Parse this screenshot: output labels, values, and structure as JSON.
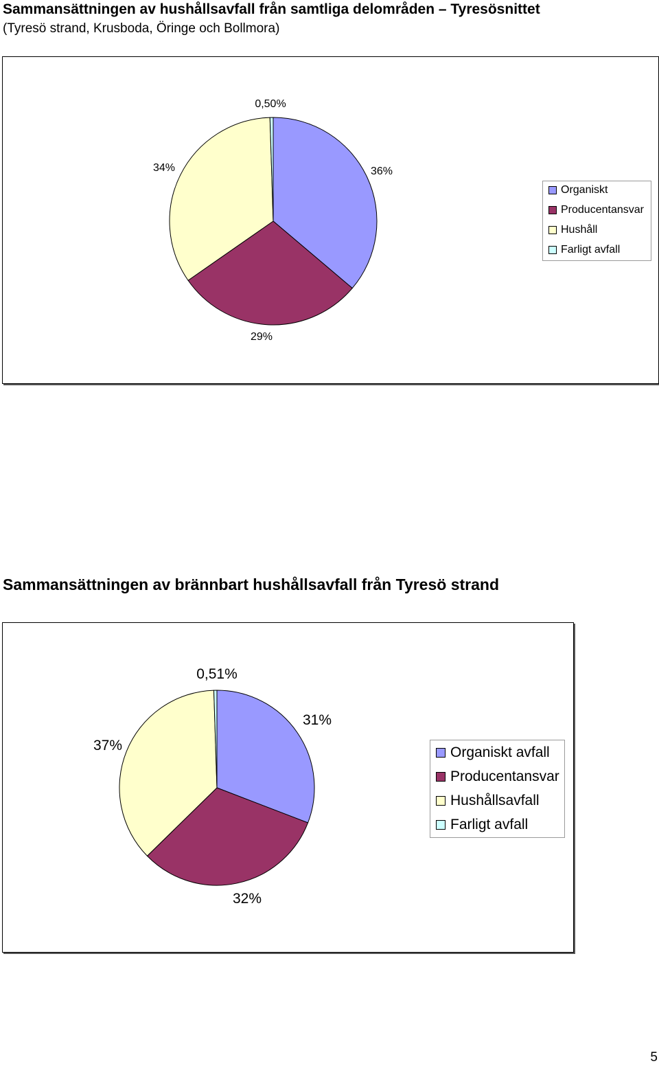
{
  "heading1": {
    "title": "Sammansättningen av hushållsavfall från samtliga delområden – Tyresösnittet",
    "subtitle": "(Tyresö strand, Krusboda, Öringe och Bollmora)"
  },
  "heading2": {
    "title": "Sammansättningen av brännbart hushållsavfall från Tyresö strand"
  },
  "page_number": "5",
  "chart_data": [
    {
      "type": "pie",
      "slices": [
        {
          "label": "Organiskt",
          "value": 36,
          "value_label": "36%",
          "color": "#9999ff"
        },
        {
          "label": "Producentansvar",
          "value": 29,
          "value_label": "29%",
          "color": "#993366"
        },
        {
          "label": "Hushåll",
          "value": 34,
          "value_label": "34%",
          "color": "#ffffcc"
        },
        {
          "label": "Farligt avfall",
          "value": 0.5,
          "value_label": "0,50%",
          "color": "#ccffff"
        }
      ],
      "legend_position": "right"
    },
    {
      "type": "pie",
      "slices": [
        {
          "label": "Organiskt avfall",
          "value": 31,
          "value_label": "31%",
          "color": "#9999ff"
        },
        {
          "label": "Producentansvar",
          "value": 32,
          "value_label": "32%",
          "color": "#993366"
        },
        {
          "label": "Hushållsavfall",
          "value": 37,
          "value_label": "37%",
          "color": "#ffffcc"
        },
        {
          "label": "Farligt avfall",
          "value": 0.51,
          "value_label": "0,51%",
          "color": "#ccffff"
        }
      ],
      "legend_position": "right"
    }
  ]
}
